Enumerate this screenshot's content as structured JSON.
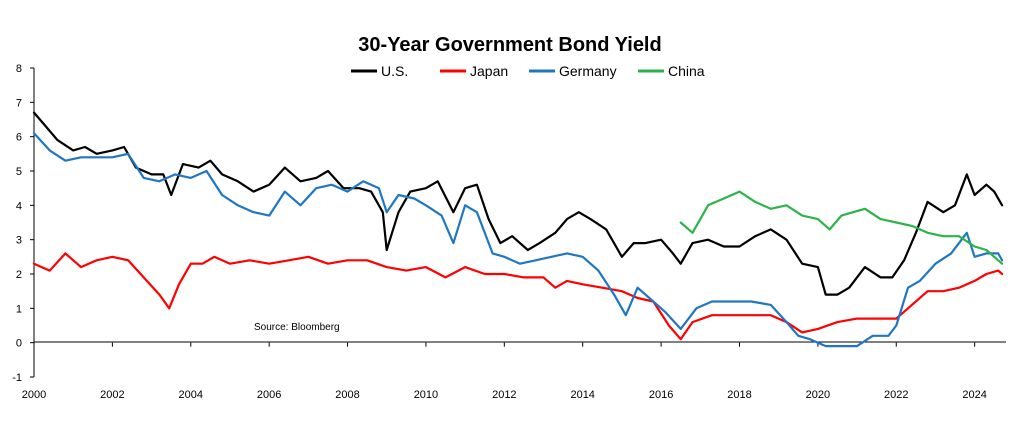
{
  "chart_data": {
    "type": "line",
    "title": "30-Year Government Bond Yield",
    "source": "Source: Bloomberg",
    "xlabel": "",
    "ylabel": "",
    "xlim": [
      2000,
      2024.8
    ],
    "ylim": [
      -1,
      8
    ],
    "grid": false,
    "legend_position": "top-center",
    "x_ticks": [
      "2000",
      "2002",
      "2004",
      "2006",
      "2008",
      "2010",
      "2012",
      "2014",
      "2016",
      "2018",
      "2020",
      "2022",
      "2024"
    ],
    "y_ticks": [
      "-1",
      "0",
      "1",
      "2",
      "3",
      "4",
      "5",
      "6",
      "7",
      "8"
    ],
    "series": [
      {
        "name": "U.S.",
        "color": "#000000",
        "x": [
          2000.0,
          2000.3,
          2000.6,
          2001.0,
          2001.3,
          2001.6,
          2002.0,
          2002.3,
          2002.6,
          2003.0,
          2003.3,
          2003.5,
          2003.8,
          2004.2,
          2004.5,
          2004.8,
          2005.2,
          2005.6,
          2006.0,
          2006.4,
          2006.8,
          2007.2,
          2007.5,
          2007.9,
          2008.3,
          2008.6,
          2008.9,
          2009.0,
          2009.3,
          2009.6,
          2010.0,
          2010.3,
          2010.7,
          2011.0,
          2011.3,
          2011.6,
          2011.9,
          2012.2,
          2012.6,
          2012.9,
          2013.3,
          2013.6,
          2013.9,
          2014.2,
          2014.6,
          2015.0,
          2015.3,
          2015.6,
          2016.0,
          2016.3,
          2016.5,
          2016.8,
          2017.2,
          2017.6,
          2018.0,
          2018.4,
          2018.8,
          2019.2,
          2019.6,
          2020.0,
          2020.2,
          2020.5,
          2020.8,
          2021.2,
          2021.6,
          2021.9,
          2022.2,
          2022.5,
          2022.8,
          2023.2,
          2023.5,
          2023.8,
          2024.0,
          2024.3,
          2024.5,
          2024.7
        ],
        "y": [
          6.7,
          6.3,
          5.9,
          5.6,
          5.7,
          5.5,
          5.6,
          5.7,
          5.1,
          4.9,
          4.9,
          4.3,
          5.2,
          5.1,
          5.3,
          4.9,
          4.7,
          4.4,
          4.6,
          5.1,
          4.7,
          4.8,
          5.0,
          4.5,
          4.5,
          4.4,
          3.8,
          2.7,
          3.8,
          4.4,
          4.5,
          4.7,
          3.8,
          4.5,
          4.6,
          3.6,
          2.9,
          3.1,
          2.7,
          2.9,
          3.2,
          3.6,
          3.8,
          3.6,
          3.3,
          2.5,
          2.9,
          2.9,
          3.0,
          2.6,
          2.3,
          2.9,
          3.0,
          2.8,
          2.8,
          3.1,
          3.3,
          3.0,
          2.3,
          2.2,
          1.4,
          1.4,
          1.6,
          2.2,
          1.9,
          1.9,
          2.4,
          3.2,
          4.1,
          3.8,
          4.0,
          4.9,
          4.3,
          4.6,
          4.4,
          4.0
        ]
      },
      {
        "name": "Japan",
        "color": "#ff0000",
        "x": [
          2000.0,
          2000.4,
          2000.8,
          2001.2,
          2001.6,
          2002.0,
          2002.4,
          2002.8,
          2003.2,
          2003.45,
          2003.7,
          2004.0,
          2004.3,
          2004.6,
          2005.0,
          2005.5,
          2006.0,
          2006.5,
          2007.0,
          2007.5,
          2008.0,
          2008.5,
          2009.0,
          2009.5,
          2010.0,
          2010.5,
          2011.0,
          2011.5,
          2012.0,
          2012.5,
          2013.0,
          2013.3,
          2013.6,
          2014.0,
          2014.5,
          2015.0,
          2015.4,
          2015.8,
          2016.2,
          2016.5,
          2016.8,
          2017.3,
          2017.8,
          2018.3,
          2018.8,
          2019.2,
          2019.6,
          2020.0,
          2020.5,
          2021.0,
          2021.5,
          2022.0,
          2022.4,
          2022.8,
          2023.2,
          2023.6,
          2024.0,
          2024.3,
          2024.6,
          2024.7
        ],
        "y": [
          2.3,
          2.1,
          2.6,
          2.2,
          2.4,
          2.5,
          2.4,
          1.9,
          1.4,
          1.0,
          1.7,
          2.3,
          2.3,
          2.5,
          2.3,
          2.4,
          2.3,
          2.4,
          2.5,
          2.3,
          2.4,
          2.4,
          2.2,
          2.1,
          2.2,
          1.9,
          2.2,
          2.0,
          2.0,
          1.9,
          1.9,
          1.6,
          1.8,
          1.7,
          1.6,
          1.5,
          1.3,
          1.2,
          0.5,
          0.1,
          0.6,
          0.8,
          0.8,
          0.8,
          0.8,
          0.6,
          0.3,
          0.4,
          0.6,
          0.7,
          0.7,
          0.7,
          1.1,
          1.5,
          1.5,
          1.6,
          1.8,
          2.0,
          2.1,
          2.0
        ]
      },
      {
        "name": "Germany",
        "color": "#1f77c4",
        "x": [
          2000.0,
          2000.4,
          2000.8,
          2001.2,
          2001.6,
          2002.0,
          2002.4,
          2002.8,
          2003.2,
          2003.6,
          2004.0,
          2004.4,
          2004.8,
          2005.2,
          2005.6,
          2006.0,
          2006.4,
          2006.8,
          2007.2,
          2007.6,
          2008.0,
          2008.4,
          2008.8,
          2009.0,
          2009.3,
          2009.7,
          2010.0,
          2010.4,
          2010.7,
          2011.0,
          2011.3,
          2011.7,
          2012.0,
          2012.4,
          2012.8,
          2013.2,
          2013.6,
          2014.0,
          2014.4,
          2014.8,
          2015.1,
          2015.4,
          2015.8,
          2016.1,
          2016.5,
          2016.9,
          2017.3,
          2017.8,
          2018.3,
          2018.8,
          2019.2,
          2019.5,
          2019.8,
          2020.2,
          2020.6,
          2021.0,
          2021.4,
          2021.8,
          2022.0,
          2022.3,
          2022.6,
          2023.0,
          2023.4,
          2023.8,
          2024.0,
          2024.3,
          2024.6,
          2024.7
        ],
        "y": [
          6.1,
          5.6,
          5.3,
          5.4,
          5.4,
          5.4,
          5.5,
          4.8,
          4.7,
          4.9,
          4.8,
          5.0,
          4.3,
          4.0,
          3.8,
          3.7,
          4.4,
          4.0,
          4.5,
          4.6,
          4.4,
          4.7,
          4.5,
          3.8,
          4.3,
          4.2,
          4.0,
          3.7,
          2.9,
          4.0,
          3.8,
          2.6,
          2.5,
          2.3,
          2.4,
          2.5,
          2.6,
          2.5,
          2.1,
          1.4,
          0.8,
          1.6,
          1.2,
          0.9,
          0.4,
          1.0,
          1.2,
          1.2,
          1.2,
          1.1,
          0.6,
          0.2,
          0.1,
          -0.1,
          -0.1,
          -0.1,
          0.2,
          0.2,
          0.5,
          1.6,
          1.8,
          2.3,
          2.6,
          3.2,
          2.5,
          2.6,
          2.6,
          2.4
        ]
      },
      {
        "name": "China",
        "color": "#2db34a",
        "x": [
          2016.5,
          2016.8,
          2017.2,
          2017.6,
          2018.0,
          2018.4,
          2018.8,
          2019.2,
          2019.6,
          2020.0,
          2020.3,
          2020.6,
          2020.9,
          2021.2,
          2021.6,
          2022.0,
          2022.4,
          2022.8,
          2023.2,
          2023.6,
          2024.0,
          2024.3,
          2024.6,
          2024.7
        ],
        "y": [
          3.5,
          3.2,
          4.0,
          4.2,
          4.4,
          4.1,
          3.9,
          4.0,
          3.7,
          3.6,
          3.3,
          3.7,
          3.8,
          3.9,
          3.6,
          3.5,
          3.4,
          3.2,
          3.1,
          3.1,
          2.8,
          2.7,
          2.4,
          2.3
        ]
      }
    ]
  }
}
